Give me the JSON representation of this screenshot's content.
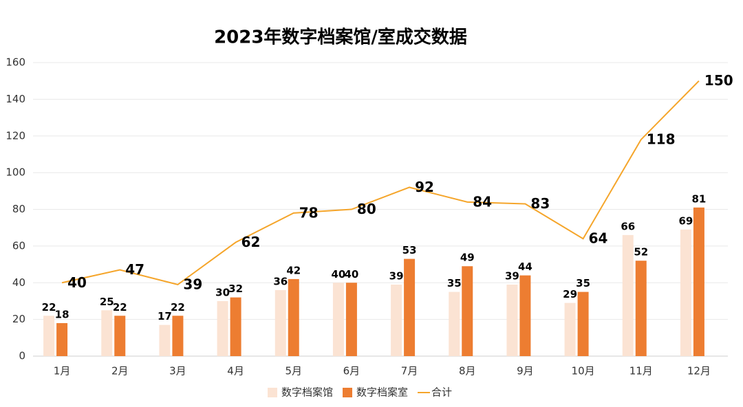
{
  "chart_data": {
    "type": "bar",
    "title": "2023年数字档案馆/室成交数据",
    "categories": [
      "1月",
      "2月",
      "3月",
      "4月",
      "5月",
      "6月",
      "7月",
      "8月",
      "9月",
      "10月",
      "11月",
      "12月"
    ],
    "series": [
      {
        "name": "数字档案馆",
        "color": "#fbe3d3",
        "values": [
          22,
          25,
          17,
          30,
          36,
          40,
          39,
          35,
          39,
          29,
          66,
          69
        ]
      },
      {
        "name": "数字档案室",
        "color": "#ed7d31",
        "values": [
          18,
          22,
          22,
          32,
          42,
          40,
          53,
          49,
          44,
          35,
          52,
          81
        ]
      },
      {
        "name": "合计",
        "color": "#f5a52a",
        "type": "line",
        "values": [
          40,
          47,
          39,
          62,
          78,
          80,
          92,
          84,
          83,
          64,
          118,
          150
        ]
      }
    ],
    "ylim": [
      0,
      160
    ],
    "yticks": [
      0,
      20,
      40,
      60,
      80,
      100,
      120,
      140,
      160
    ],
    "grid": true
  }
}
